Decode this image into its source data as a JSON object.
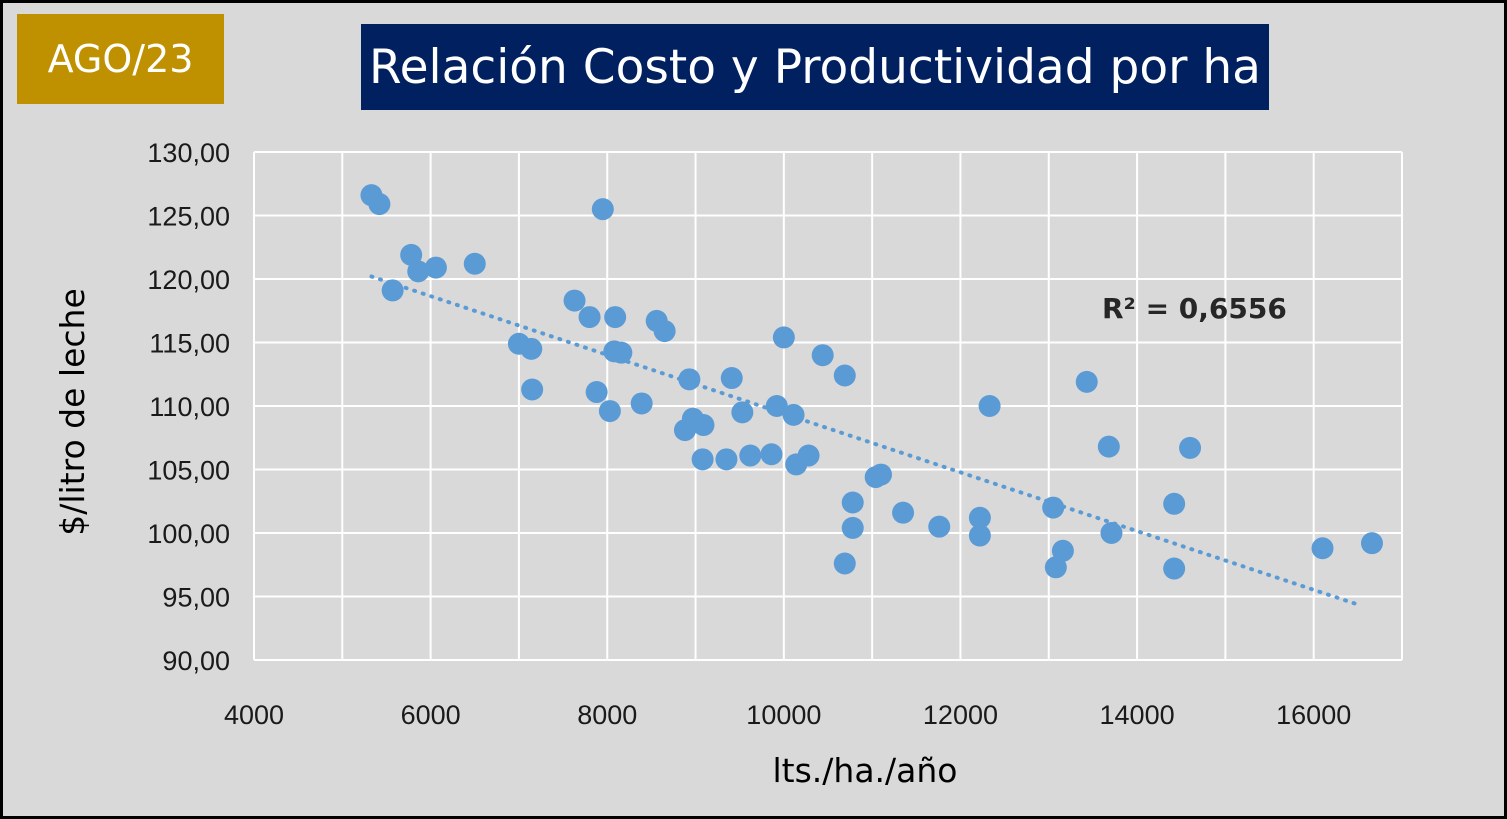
{
  "badge": {
    "label": "AGO/23",
    "color": "#bf9000"
  },
  "header": {
    "title": "Relación Costo y Productividad por ha",
    "color": "#002060"
  },
  "chart_data": {
    "type": "scatter",
    "title": "Relación Costo y Productividad por ha",
    "xlabel": "lts./ha./año",
    "ylabel": "$/litro de leche",
    "xlim": [
      4000,
      17000
    ],
    "ylim": [
      90,
      130
    ],
    "x_ticks": [
      "4000",
      "6000",
      "8000",
      "10000",
      "12000",
      "14000",
      "16000"
    ],
    "y_ticks": [
      "90,00",
      "95,00",
      "100,00",
      "105,00",
      "110,00",
      "115,00",
      "120,00",
      "125,00",
      "130,00"
    ],
    "grid": true,
    "marker_color": "#5b9bd5",
    "annotation": "R² = 0,6556",
    "trendline": {
      "type": "linear",
      "x": [
        5330,
        16530
      ],
      "y": [
        120.2,
        94.3
      ],
      "style": "dotted"
    },
    "points": [
      [
        5330,
        126.6
      ],
      [
        5420,
        125.9
      ],
      [
        5570,
        119.1
      ],
      [
        5780,
        121.9
      ],
      [
        5860,
        120.6
      ],
      [
        6060,
        120.9
      ],
      [
        6500,
        121.2
      ],
      [
        7000,
        114.9
      ],
      [
        7140,
        114.5
      ],
      [
        7150,
        111.3
      ],
      [
        7630,
        118.3
      ],
      [
        7800,
        117.0
      ],
      [
        7880,
        111.1
      ],
      [
        7950,
        125.5
      ],
      [
        8030,
        109.6
      ],
      [
        8080,
        114.3
      ],
      [
        8090,
        117.0
      ],
      [
        8160,
        114.2
      ],
      [
        8390,
        110.2
      ],
      [
        8560,
        116.7
      ],
      [
        8650,
        115.9
      ],
      [
        8880,
        108.1
      ],
      [
        8930,
        112.1
      ],
      [
        8970,
        109.0
      ],
      [
        9080,
        105.8
      ],
      [
        9090,
        108.5
      ],
      [
        9350,
        105.8
      ],
      [
        9410,
        112.2
      ],
      [
        9530,
        109.5
      ],
      [
        9620,
        106.1
      ],
      [
        9860,
        106.2
      ],
      [
        9920,
        110.0
      ],
      [
        10000,
        115.4
      ],
      [
        10110,
        109.3
      ],
      [
        10140,
        105.4
      ],
      [
        10280,
        106.1
      ],
      [
        10440,
        114.0
      ],
      [
        10690,
        112.4
      ],
      [
        10690,
        97.6
      ],
      [
        10780,
        102.4
      ],
      [
        10780,
        100.4
      ],
      [
        11040,
        104.4
      ],
      [
        11100,
        104.6
      ],
      [
        11350,
        101.6
      ],
      [
        11760,
        100.5
      ],
      [
        12220,
        101.2
      ],
      [
        12220,
        99.8
      ],
      [
        12330,
        110.0
      ],
      [
        13050,
        102.0
      ],
      [
        13080,
        97.3
      ],
      [
        13160,
        98.6
      ],
      [
        13430,
        111.9
      ],
      [
        13680,
        106.8
      ],
      [
        13710,
        100.0
      ],
      [
        14420,
        102.3
      ],
      [
        14420,
        97.2
      ],
      [
        14600,
        106.7
      ],
      [
        16100,
        98.8
      ],
      [
        16660,
        99.2
      ]
    ]
  }
}
